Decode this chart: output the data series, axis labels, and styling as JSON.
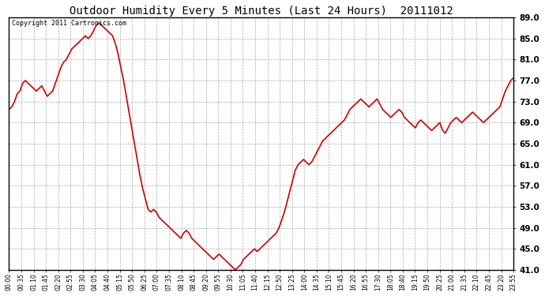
{
  "title": "Outdoor Humidity Every 5 Minutes (Last 24 Hours)  20111012",
  "copyright": "Copyright 2011 Cartronics.com",
  "line_color": "#cc0000",
  "bg_color": "#ffffff",
  "plot_bg_color": "#ffffff",
  "grid_color": "#aaaaaa",
  "ylim": [
    41.0,
    89.0
  ],
  "yticks": [
    41.0,
    45.0,
    49.0,
    53.0,
    57.0,
    61.0,
    65.0,
    69.0,
    73.0,
    77.0,
    81.0,
    85.0,
    89.0
  ],
  "xtick_labels": [
    "00:00",
    "00:35",
    "01:10",
    "01:45",
    "02:20",
    "02:55",
    "03:30",
    "04:05",
    "04:40",
    "05:15",
    "05:50",
    "06:25",
    "07:00",
    "07:35",
    "08:10",
    "08:45",
    "09:20",
    "09:55",
    "10:30",
    "11:05",
    "11:40",
    "12:15",
    "12:50",
    "13:25",
    "14:00",
    "14:35",
    "15:10",
    "15:45",
    "16:20",
    "16:55",
    "17:30",
    "18:05",
    "18:40",
    "19:15",
    "19:50",
    "20:25",
    "21:00",
    "21:35",
    "22:10",
    "22:45",
    "23:20",
    "23:55"
  ],
  "humidity_values": [
    71.5,
    72.0,
    73.0,
    74.5,
    75.0,
    76.5,
    77.0,
    76.5,
    76.0,
    75.5,
    75.0,
    75.5,
    76.0,
    75.0,
    74.0,
    74.5,
    75.0,
    76.5,
    78.0,
    79.5,
    80.5,
    81.0,
    82.0,
    83.0,
    83.5,
    84.0,
    84.5,
    85.0,
    85.5,
    85.0,
    85.5,
    86.5,
    87.5,
    88.0,
    87.5,
    87.0,
    86.5,
    86.0,
    85.5,
    84.0,
    82.0,
    79.5,
    77.0,
    74.0,
    71.0,
    68.0,
    65.0,
    62.0,
    59.0,
    56.5,
    54.5,
    52.5,
    52.0,
    52.5,
    52.0,
    51.0,
    50.5,
    50.0,
    49.5,
    49.0,
    48.5,
    48.0,
    47.5,
    47.0,
    48.0,
    48.5,
    48.0,
    47.0,
    46.5,
    46.0,
    45.5,
    45.0,
    44.5,
    44.0,
    43.5,
    43.0,
    43.5,
    44.0,
    43.5,
    43.0,
    42.5,
    42.0,
    41.5,
    41.0,
    41.5,
    42.0,
    43.0,
    43.5,
    44.0,
    44.5,
    45.0,
    44.5,
    45.0,
    45.5,
    46.0,
    46.5,
    47.0,
    47.5,
    48.0,
    49.0,
    50.5,
    52.0,
    54.0,
    56.0,
    58.0,
    60.0,
    61.0,
    61.5,
    62.0,
    61.5,
    61.0,
    61.5,
    62.5,
    63.5,
    64.5,
    65.5,
    66.0,
    66.5,
    67.0,
    67.5,
    68.0,
    68.5,
    69.0,
    69.5,
    70.5,
    71.5,
    72.0,
    72.5,
    73.0,
    73.5,
    73.0,
    72.5,
    72.0,
    72.5,
    73.0,
    73.5,
    72.5,
    71.5,
    71.0,
    70.5,
    70.0,
    70.5,
    71.0,
    71.5,
    71.0,
    70.0,
    69.5,
    69.0,
    68.5,
    68.0,
    69.0,
    69.5,
    69.0,
    68.5,
    68.0,
    67.5,
    68.0,
    68.5,
    69.0,
    67.5,
    67.0,
    68.0,
    69.0,
    69.5,
    70.0,
    69.5,
    69.0,
    69.5,
    70.0,
    70.5,
    71.0,
    70.5,
    70.0,
    69.5,
    69.0,
    69.5,
    70.0,
    70.5,
    71.0,
    71.5,
    72.0,
    73.5,
    75.0,
    76.0,
    77.0,
    77.5
  ]
}
